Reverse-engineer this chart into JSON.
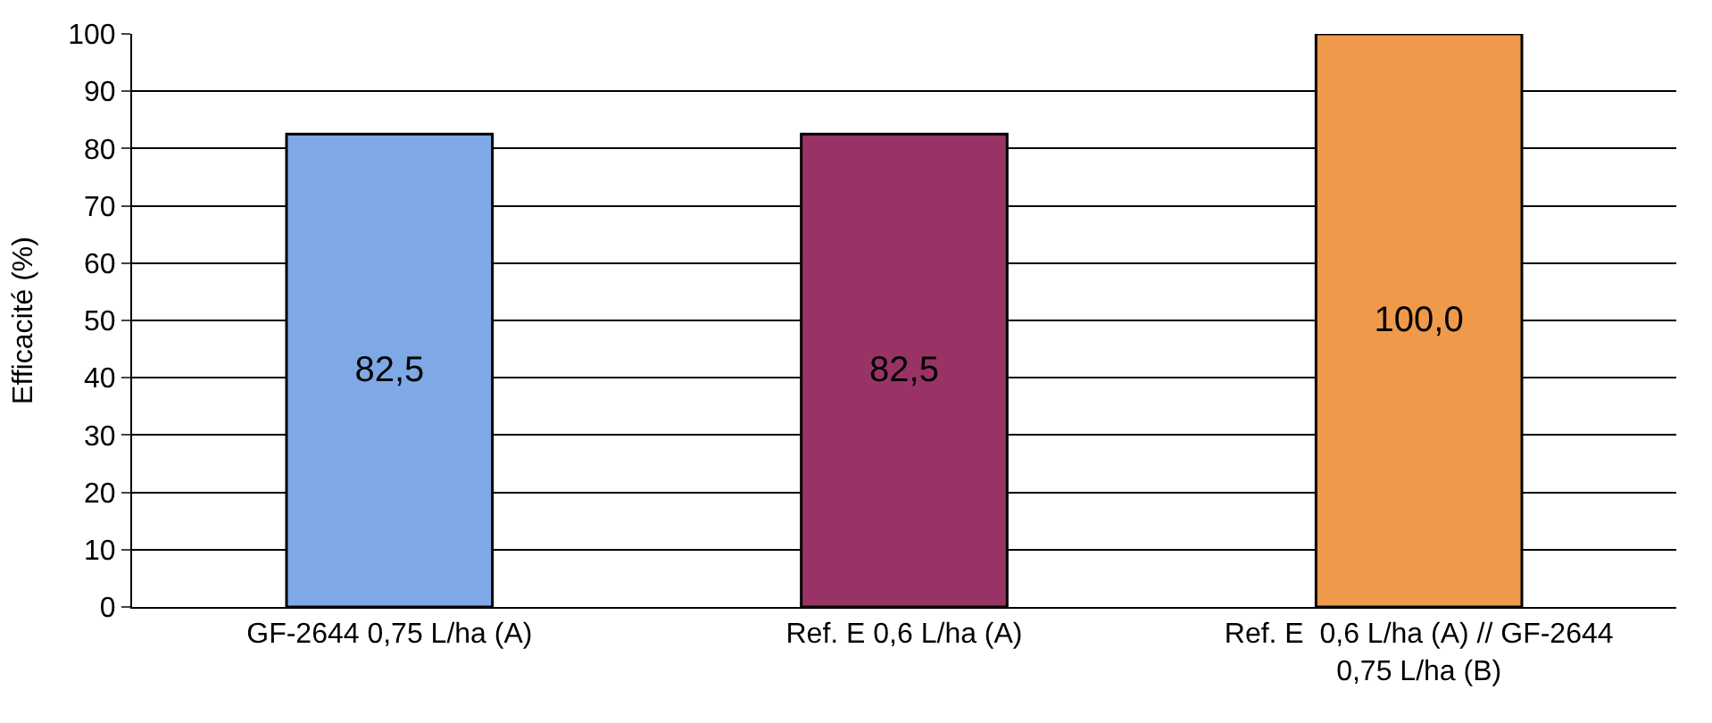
{
  "chart_data": {
    "type": "bar",
    "ylabel": "Efficacité (%)",
    "categories": [
      "GF-2644 0,75 L/ha (A)",
      "Ref. E 0,6 L/ha (A)",
      "Ref. E  0,6 L/ha (A) // GF-2644 0,75 L/ha (B)"
    ],
    "values": [
      82.5,
      82.5,
      100.0
    ],
    "value_labels": [
      "82,5",
      "82,5",
      "100,0"
    ],
    "colors": [
      "#7fa8e6",
      "#993366",
      "#ef9a4a"
    ],
    "ylim": [
      0,
      100
    ],
    "yticks": [
      0,
      10,
      20,
      30,
      40,
      50,
      60,
      70,
      80,
      90,
      100
    ],
    "grid": "y"
  }
}
